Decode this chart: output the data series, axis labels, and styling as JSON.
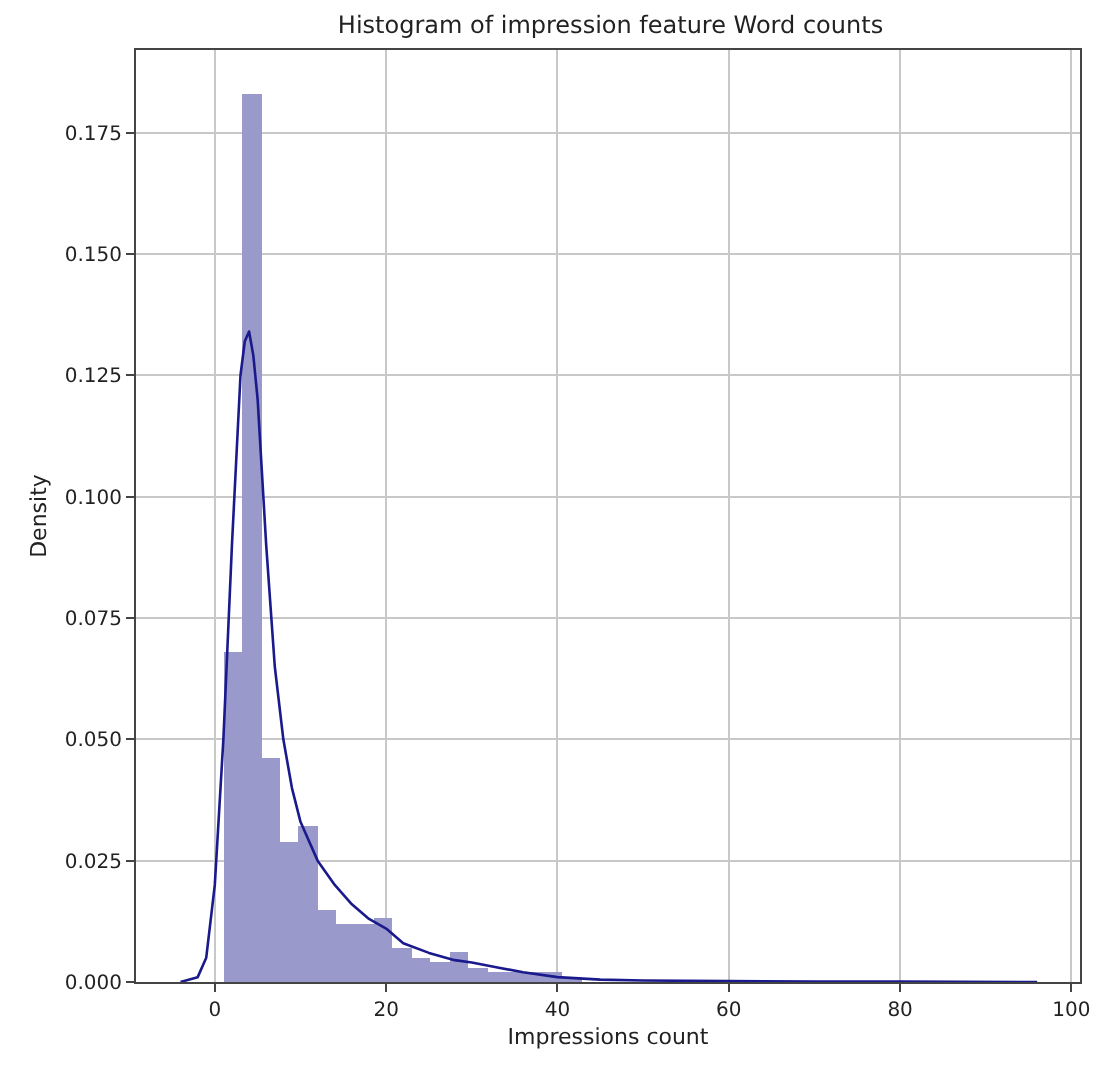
{
  "chart_data": {
    "type": "histogram",
    "title": "Histogram of impression feature Word counts",
    "xlabel": "Impressions count",
    "ylabel": "Density",
    "bins": [
      1,
      3.2,
      5.4,
      7.6,
      9.8,
      12,
      14.2,
      16.4,
      18.6,
      20.8,
      23,
      25.2,
      27.4,
      29.6,
      31.8,
      34,
      36.2,
      38.4,
      40.6,
      42.8,
      45,
      47.2,
      49.4,
      51.6,
      53.8,
      56,
      58.2,
      60.4,
      62.6,
      64.8,
      67,
      69.2,
      71.4,
      73.6,
      75.8,
      78,
      80.2,
      82.4,
      84.6,
      86.8,
      89,
      91.2,
      93.4,
      95.6
    ],
    "values": [
      0.068,
      0.183,
      0.046,
      0.029,
      0.032,
      0.015,
      0.012,
      0.012,
      0.013,
      0.007,
      0.005,
      0.004,
      0.006,
      0.003,
      0.002,
      0.002,
      0.002,
      0.002,
      0.001,
      null,
      null,
      0,
      0,
      0,
      0,
      null,
      0,
      0,
      0,
      0,
      0,
      0,
      0,
      0,
      0,
      0,
      0,
      0,
      0,
      0,
      0,
      0,
      0
    ],
    "color": "#9999cc",
    "series": [
      {
        "type": "line",
        "color": "#1a1a8c",
        "x": [
          -4,
          -2,
          -1,
          0,
          1,
          2,
          3,
          3.5,
          4,
          4.5,
          5,
          6,
          7,
          8,
          9,
          10,
          12,
          14,
          16,
          18,
          20,
          22,
          25,
          28,
          30,
          33,
          36,
          40,
          45,
          50,
          60,
          70,
          80,
          96
        ],
        "values": [
          0,
          0.001,
          0.005,
          0.02,
          0.05,
          0.09,
          0.125,
          0.132,
          0.134,
          0.129,
          0.12,
          0.09,
          0.065,
          0.05,
          0.04,
          0.033,
          0.025,
          0.02,
          0.016,
          0.013,
          0.011,
          0.008,
          0.006,
          0.0045,
          0.004,
          0.003,
          0.002,
          0.001,
          0.0005,
          0.0003,
          0.0002,
          0.0001,
          0.0001,
          0
        ]
      }
    ],
    "xlim": [
      -9.2,
      101
    ],
    "xticks": [
      0,
      20,
      40,
      60,
      80,
      100
    ],
    "ylim": [
      0,
      0.192
    ],
    "yticks": [
      {
        "value": 0,
        "label": "0.000"
      },
      {
        "value": 0.025,
        "label": "0.025"
      },
      {
        "value": 0.05,
        "label": "0.050"
      },
      {
        "value": 0.075,
        "label": "0.075"
      },
      {
        "value": 0.1,
        "label": "0.100"
      },
      {
        "value": 0.125,
        "label": "0.125"
      },
      {
        "value": 0.15,
        "label": "0.150"
      },
      {
        "value": 0.175,
        "label": "0.175"
      }
    ],
    "grid": true
  }
}
